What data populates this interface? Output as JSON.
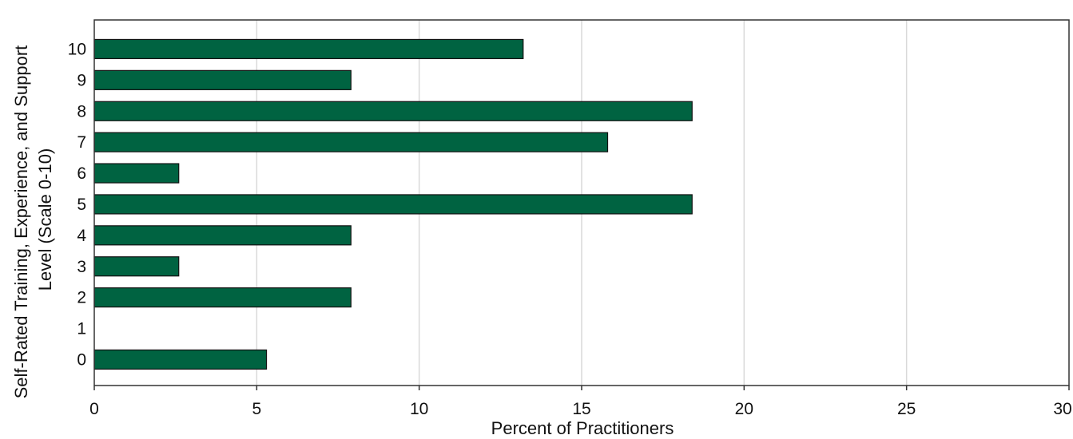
{
  "chart_data": {
    "type": "bar",
    "orientation": "horizontal",
    "categories": [
      "10",
      "9",
      "8",
      "7",
      "6",
      "5",
      "4",
      "3",
      "2",
      "1",
      "0"
    ],
    "values": [
      13.2,
      7.9,
      18.4,
      15.8,
      2.6,
      18.4,
      7.9,
      2.6,
      7.9,
      0,
      5.3
    ],
    "xlabel": "Percent of Practitioners",
    "ylabel_lines": [
      "Self-Rated Training, Experience, and Support",
      "Level (Scale 0-10)"
    ],
    "xlim": [
      0,
      30
    ],
    "xticks": [
      "0",
      "5",
      "10",
      "15",
      "20",
      "25",
      "30"
    ],
    "grid": "vertical",
    "bar_color": "#006341",
    "bar_edge_color": "#111111",
    "grid_color": "#d9d9d9"
  }
}
